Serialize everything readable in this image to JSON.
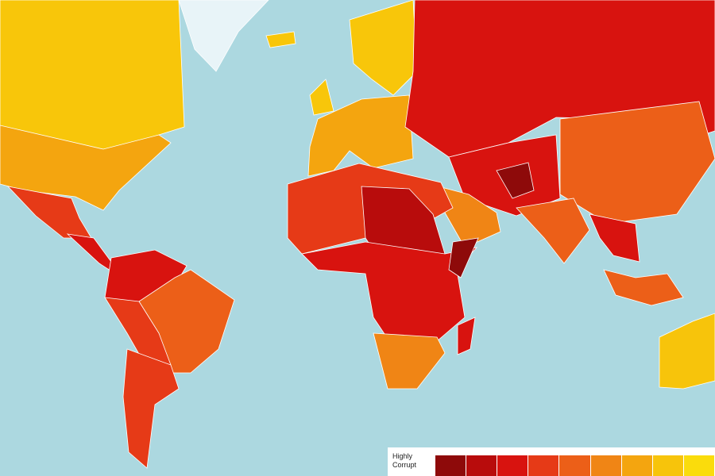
{
  "legend": {
    "label": "Highly Corrupt",
    "colors": [
      "#8e0a0a",
      "#b80c0c",
      "#d8130f",
      "#e63a17",
      "#ec5f18",
      "#f08515",
      "#f4a50f",
      "#f7c40b",
      "#fadc0c"
    ]
  }
}
